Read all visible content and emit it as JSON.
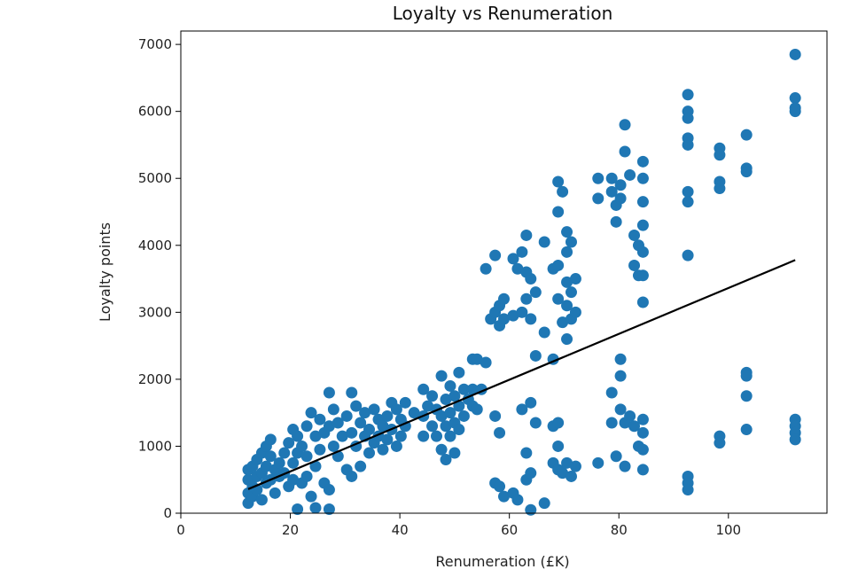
{
  "chart_data": {
    "type": "scatter",
    "title": "Loyalty vs Renumeration",
    "xlabel": "Renumeration (£K)",
    "ylabel": "Loyalty points",
    "xlim": [
      0,
      118
    ],
    "ylim": [
      0,
      7200
    ],
    "xticks": [
      0,
      20,
      40,
      60,
      80,
      100
    ],
    "yticks": [
      0,
      1000,
      2000,
      3000,
      4000,
      5000,
      6000,
      7000
    ],
    "grid": false,
    "marker_color": "#1f77b4",
    "line_color": "#000000",
    "trendline": {
      "x": [
        12.3,
        112.2
      ],
      "y": [
        360,
        3780
      ]
    },
    "series": [
      {
        "values_xy": [
          [
            12.3,
            300
          ],
          [
            12.3,
            500
          ],
          [
            12.3,
            650
          ],
          [
            12.3,
            150
          ],
          [
            13.1,
            400
          ],
          [
            13.1,
            700
          ],
          [
            13.1,
            250
          ],
          [
            13.9,
            550
          ],
          [
            13.9,
            800
          ],
          [
            13.9,
            350
          ],
          [
            14.8,
            600
          ],
          [
            14.8,
            900
          ],
          [
            14.8,
            200
          ],
          [
            15.6,
            450
          ],
          [
            15.6,
            1000
          ],
          [
            15.6,
            700
          ],
          [
            16.4,
            850
          ],
          [
            16.4,
            500
          ],
          [
            16.4,
            1100
          ],
          [
            17.2,
            650
          ],
          [
            17.2,
            300
          ],
          [
            18.0,
            750
          ],
          [
            18.0,
            550
          ],
          [
            18.9,
            900
          ],
          [
            18.9,
            600
          ],
          [
            19.7,
            1050
          ],
          [
            19.7,
            400
          ],
          [
            20.5,
            1250
          ],
          [
            20.5,
            750
          ],
          [
            20.5,
            500
          ],
          [
            21.3,
            1150
          ],
          [
            21.3,
            900
          ],
          [
            21.3,
            60
          ],
          [
            22.1,
            1000
          ],
          [
            22.1,
            450
          ],
          [
            23.0,
            1300
          ],
          [
            23.0,
            850
          ],
          [
            23.0,
            550
          ],
          [
            23.8,
            1500
          ],
          [
            23.8,
            250
          ],
          [
            24.6,
            1150
          ],
          [
            24.6,
            700
          ],
          [
            24.6,
            80
          ],
          [
            25.4,
            1400
          ],
          [
            25.4,
            950
          ],
          [
            26.2,
            1200
          ],
          [
            26.2,
            450
          ],
          [
            27.1,
            1800
          ],
          [
            27.1,
            1300
          ],
          [
            27.1,
            350
          ],
          [
            27.1,
            60
          ],
          [
            27.9,
            1550
          ],
          [
            27.9,
            1000
          ],
          [
            28.7,
            1350
          ],
          [
            28.7,
            850
          ],
          [
            29.5,
            1150
          ],
          [
            30.3,
            1450
          ],
          [
            30.3,
            650
          ],
          [
            31.2,
            1800
          ],
          [
            31.2,
            1200
          ],
          [
            31.2,
            550
          ],
          [
            32.0,
            1600
          ],
          [
            32.0,
            1000
          ],
          [
            32.8,
            1350
          ],
          [
            32.8,
            700
          ],
          [
            33.6,
            1150
          ],
          [
            33.6,
            1500
          ],
          [
            34.4,
            1250
          ],
          [
            34.4,
            900
          ],
          [
            35.3,
            1550
          ],
          [
            35.3,
            1050
          ],
          [
            36.1,
            1400
          ],
          [
            36.1,
            1150
          ],
          [
            36.9,
            1300
          ],
          [
            36.9,
            950
          ],
          [
            37.7,
            1450
          ],
          [
            37.7,
            1100
          ],
          [
            38.5,
            1650
          ],
          [
            38.5,
            1250
          ],
          [
            39.4,
            1550
          ],
          [
            39.4,
            1000
          ],
          [
            40.2,
            1400
          ],
          [
            40.2,
            1150
          ],
          [
            41.0,
            1650
          ],
          [
            41.0,
            1300
          ],
          [
            42.6,
            1500
          ],
          [
            44.3,
            1850
          ],
          [
            44.3,
            1450
          ],
          [
            44.3,
            1150
          ],
          [
            45.1,
            1600
          ],
          [
            45.9,
            1300
          ],
          [
            45.9,
            1750
          ],
          [
            46.7,
            1550
          ],
          [
            46.7,
            1150
          ],
          [
            47.6,
            2050
          ],
          [
            47.6,
            1450
          ],
          [
            47.6,
            950
          ],
          [
            48.4,
            1700
          ],
          [
            48.4,
            1300
          ],
          [
            48.4,
            800
          ],
          [
            49.2,
            1900
          ],
          [
            49.2,
            1500
          ],
          [
            49.2,
            1150
          ],
          [
            50.0,
            1750
          ],
          [
            50.0,
            1350
          ],
          [
            50.0,
            900
          ],
          [
            50.8,
            2100
          ],
          [
            50.8,
            1600
          ],
          [
            50.8,
            1250
          ],
          [
            51.7,
            1850
          ],
          [
            51.7,
            1450
          ],
          [
            52.5,
            1700
          ],
          [
            53.3,
            2300
          ],
          [
            53.3,
            1850
          ],
          [
            53.3,
            1600
          ],
          [
            54.1,
            2300
          ],
          [
            54.1,
            1550
          ],
          [
            54.9,
            1850
          ],
          [
            55.7,
            2250
          ],
          [
            55.7,
            3650
          ],
          [
            56.6,
            2900
          ],
          [
            57.4,
            3850
          ],
          [
            57.4,
            3000
          ],
          [
            57.4,
            1450
          ],
          [
            57.4,
            450
          ],
          [
            58.2,
            3100
          ],
          [
            58.2,
            2800
          ],
          [
            58.2,
            1200
          ],
          [
            58.2,
            400
          ],
          [
            59.0,
            3200
          ],
          [
            59.0,
            2900
          ],
          [
            59.0,
            250
          ],
          [
            60.7,
            3800
          ],
          [
            60.7,
            2950
          ],
          [
            60.7,
            300
          ],
          [
            61.5,
            3650
          ],
          [
            61.5,
            200
          ],
          [
            62.3,
            3900
          ],
          [
            62.3,
            3000
          ],
          [
            62.3,
            1550
          ],
          [
            63.1,
            4150
          ],
          [
            63.1,
            3600
          ],
          [
            63.1,
            3200
          ],
          [
            63.1,
            900
          ],
          [
            63.1,
            500
          ],
          [
            63.9,
            3500
          ],
          [
            63.9,
            2900
          ],
          [
            63.9,
            1650
          ],
          [
            63.9,
            600
          ],
          [
            63.9,
            50
          ],
          [
            64.8,
            3300
          ],
          [
            64.8,
            2350
          ],
          [
            64.8,
            1350
          ],
          [
            66.4,
            4050
          ],
          [
            66.4,
            2700
          ],
          [
            66.4,
            150
          ],
          [
            68.0,
            3650
          ],
          [
            68.0,
            2300
          ],
          [
            68.0,
            1300
          ],
          [
            68.0,
            750
          ],
          [
            68.9,
            4950
          ],
          [
            68.9,
            4500
          ],
          [
            68.9,
            3700
          ],
          [
            68.9,
            3200
          ],
          [
            68.9,
            1350
          ],
          [
            68.9,
            1000
          ],
          [
            68.9,
            650
          ],
          [
            69.7,
            4800
          ],
          [
            69.7,
            2850
          ],
          [
            69.7,
            600
          ],
          [
            70.5,
            4200
          ],
          [
            70.5,
            3900
          ],
          [
            70.5,
            3450
          ],
          [
            70.5,
            3100
          ],
          [
            70.5,
            2600
          ],
          [
            70.5,
            750
          ],
          [
            71.3,
            4050
          ],
          [
            71.3,
            3300
          ],
          [
            71.3,
            2900
          ],
          [
            71.3,
            550
          ],
          [
            72.1,
            3500
          ],
          [
            72.1,
            3000
          ],
          [
            72.1,
            700
          ],
          [
            76.2,
            5000
          ],
          [
            76.2,
            4700
          ],
          [
            76.2,
            750
          ],
          [
            78.7,
            5000
          ],
          [
            78.7,
            4800
          ],
          [
            78.7,
            1800
          ],
          [
            78.7,
            1350
          ],
          [
            79.5,
            4600
          ],
          [
            79.5,
            4350
          ],
          [
            79.5,
            850
          ],
          [
            80.3,
            4700
          ],
          [
            80.3,
            4900
          ],
          [
            80.3,
            2300
          ],
          [
            80.3,
            2050
          ],
          [
            80.3,
            1550
          ],
          [
            81.1,
            5800
          ],
          [
            81.1,
            5400
          ],
          [
            81.1,
            1350
          ],
          [
            81.1,
            700
          ],
          [
            82.0,
            5050
          ],
          [
            82.0,
            1450
          ],
          [
            82.8,
            4150
          ],
          [
            82.8,
            3700
          ],
          [
            82.8,
            1300
          ],
          [
            83.6,
            4000
          ],
          [
            83.6,
            3550
          ],
          [
            83.6,
            1000
          ],
          [
            84.4,
            5250
          ],
          [
            84.4,
            5000
          ],
          [
            84.4,
            4650
          ],
          [
            84.4,
            4300
          ],
          [
            84.4,
            3900
          ],
          [
            84.4,
            3550
          ],
          [
            84.4,
            3150
          ],
          [
            84.4,
            1400
          ],
          [
            84.4,
            1200
          ],
          [
            84.4,
            950
          ],
          [
            84.4,
            650
          ],
          [
            92.6,
            6250
          ],
          [
            92.6,
            6000
          ],
          [
            92.6,
            5900
          ],
          [
            92.6,
            5600
          ],
          [
            92.6,
            5500
          ],
          [
            92.6,
            4800
          ],
          [
            92.6,
            4650
          ],
          [
            92.6,
            3850
          ],
          [
            92.6,
            550
          ],
          [
            92.6,
            450
          ],
          [
            92.6,
            350
          ],
          [
            98.4,
            5450
          ],
          [
            98.4,
            5350
          ],
          [
            98.4,
            4950
          ],
          [
            98.4,
            4850
          ],
          [
            98.4,
            1150
          ],
          [
            98.4,
            1050
          ],
          [
            103.3,
            5650
          ],
          [
            103.3,
            5150
          ],
          [
            103.3,
            5100
          ],
          [
            103.3,
            2100
          ],
          [
            103.3,
            2050
          ],
          [
            103.3,
            1750
          ],
          [
            103.3,
            1250
          ],
          [
            112.2,
            6850
          ],
          [
            112.2,
            6200
          ],
          [
            112.2,
            6050
          ],
          [
            112.2,
            6000
          ],
          [
            112.2,
            1400
          ],
          [
            112.2,
            1300
          ],
          [
            112.2,
            1200
          ],
          [
            112.2,
            1100
          ]
        ]
      }
    ]
  }
}
